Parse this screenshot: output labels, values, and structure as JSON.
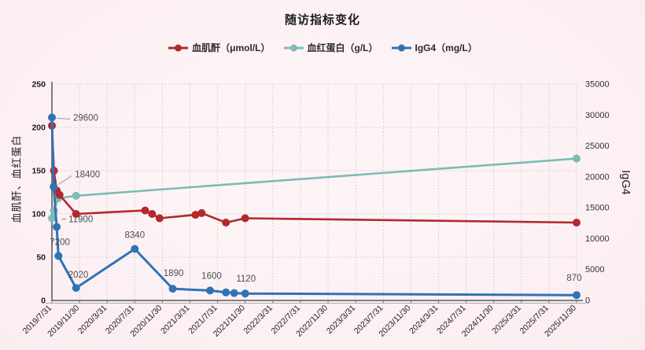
{
  "title": "随访指标变化",
  "axes": {
    "left_label": "血肌酐、血红蛋白",
    "right_label": "IgG4"
  },
  "legend": {
    "items": [
      {
        "id": "creatinine",
        "label": "血肌酐（μmol/L）",
        "color": "#b2292e"
      },
      {
        "id": "hemoglobin",
        "label": "血红蛋白（g/L）",
        "color": "#7cbcb5"
      },
      {
        "id": "igg4",
        "label": "IgG4（mg/L）",
        "color": "#2e74b5"
      }
    ]
  },
  "colors": {
    "background": "#fbecf0",
    "grid": "#c9c9c9",
    "axis": "#6f6f6f",
    "tick_text": "#222222",
    "data_label_text": "#4d4d4d",
    "leader_line": "#9a9a9a"
  },
  "chart_data": {
    "type": "line",
    "title": "随访指标变化",
    "legend_position": "top",
    "grid": "dotted",
    "x_axis": {
      "tick_interval_months": 4,
      "months_range": [
        0,
        76
      ],
      "tick_labels": [
        "2019/7/31",
        "2019/11/30",
        "2020/3/31",
        "2020/7/31",
        "2020/11/30",
        "2021/3/31",
        "2021/7/31",
        "2021/11/30",
        "2022/3/31",
        "2022/7/31",
        "2022/11/30",
        "2023/3/31",
        "2023/7/31",
        "2023/11/30",
        "2024/3/31",
        "2024/7/31",
        "2024/11/30",
        "2025/3/31",
        "2025/7/31",
        "2025/11/30"
      ]
    },
    "left_axis": {
      "label": "血肌酐、血红蛋白",
      "min": 0,
      "max": 250,
      "ticks": [
        0,
        50,
        100,
        150,
        200,
        250
      ]
    },
    "right_axis": {
      "label": "IgG4",
      "min": 0,
      "max": 35000,
      "ticks": [
        0,
        5000,
        10000,
        15000,
        20000,
        25000,
        30000,
        35000
      ]
    },
    "series": [
      {
        "id": "creatinine",
        "name": "血肌酐（μmol/L）",
        "axis": "left",
        "color": "#b2292e",
        "z": 2,
        "line_width": 2.6,
        "points": [
          [
            0,
            202
          ],
          [
            0.3,
            150
          ],
          [
            0.7,
            127
          ],
          [
            1.1,
            122
          ],
          [
            3.5,
            100
          ],
          [
            13.5,
            104
          ],
          [
            14.5,
            100
          ],
          [
            15.6,
            95
          ],
          [
            20.8,
            99
          ],
          [
            21.7,
            101
          ],
          [
            25.2,
            90
          ],
          [
            28,
            95
          ],
          [
            76,
            90
          ]
        ]
      },
      {
        "id": "hemoglobin",
        "name": "血红蛋白（g/L）",
        "axis": "left",
        "color": "#7cbcb5",
        "z": 1,
        "line_width": 2.6,
        "points": [
          [
            0,
            95
          ],
          [
            0.3,
            104
          ],
          [
            0.9,
            118
          ],
          [
            3.5,
            121
          ],
          [
            76,
            164
          ]
        ]
      },
      {
        "id": "igg4",
        "name": "IgG4（mg/L）",
        "axis": "right",
        "color": "#2e74b5",
        "z": 3,
        "line_width": 3,
        "points": [
          [
            0,
            29600,
            {
              "label": "29600",
              "anchor": "start",
              "dx": 27,
              "dy": 4,
              "leader": "line"
            }
          ],
          [
            0.25,
            18400,
            {
              "label": "18400",
              "anchor": "start",
              "dx": 27,
              "dy": -12,
              "leader": "line"
            }
          ],
          [
            0.7,
            11900,
            {
              "label": "11900",
              "anchor": "start",
              "dx": 15,
              "dy": -6,
              "leader": "dash"
            }
          ],
          [
            0.95,
            7200,
            {
              "label": "7200",
              "anchor": "start",
              "dx": -11,
              "dy": -14
            }
          ],
          [
            3.5,
            2020,
            {
              "label": "2020",
              "anchor": "start",
              "dx": -10,
              "dy": -13
            }
          ],
          [
            12,
            8340,
            {
              "label": "8340",
              "anchor": "middle",
              "dx": 0,
              "dy": -14
            }
          ],
          [
            17.5,
            1890,
            {
              "label": "1890",
              "anchor": "middle",
              "dx": 1,
              "dy": -16
            }
          ],
          [
            22.9,
            1600,
            {
              "label": "1600",
              "anchor": "middle",
              "dx": 2,
              "dy": -15
            }
          ],
          [
            25.2,
            1300
          ],
          [
            26.4,
            1200
          ],
          [
            28,
            1120,
            {
              "label": "1120",
              "anchor": "middle",
              "dx": 1,
              "dy": -15
            }
          ],
          [
            76,
            870,
            {
              "label": "870",
              "anchor": "middle",
              "dx": -3,
              "dy": -18
            }
          ]
        ]
      }
    ]
  }
}
